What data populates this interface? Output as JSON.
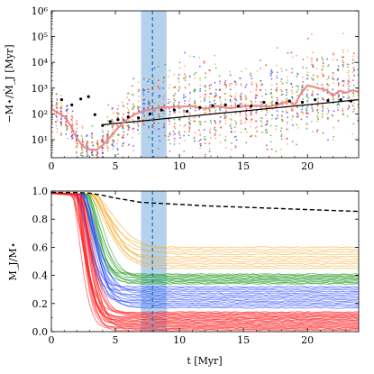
{
  "chart_data": [
    {
      "type": "scatter",
      "panel": "top",
      "ylabel": "−M⋆/Ṁ_J [Myr]",
      "xlabel": "",
      "xlim": [
        0,
        24
      ],
      "ylim_log10": [
        0.3,
        6
      ],
      "yscale": "log",
      "x_ticks": [
        0,
        5,
        10,
        15,
        20
      ],
      "x_tick_labels": [
        "0",
        "5",
        "10",
        "15",
        "20"
      ],
      "y_ticks_log10": [
        1,
        2,
        3,
        4,
        5,
        6
      ],
      "y_tick_labels": [
        "10¹",
        "10²",
        "10³",
        "10⁴",
        "10⁵",
        "10⁶"
      ],
      "shaded_band": {
        "x_min": 7,
        "x_max": 9,
        "color": "#5b9bd5"
      },
      "vline": {
        "x": 7.9,
        "color": "#1f77b4",
        "style": "dashed"
      },
      "colors": {
        "orange": "#f5a623",
        "green": "#2ca02c",
        "blue": "#1f3fff",
        "red": "#ff1a1a",
        "salmon": "#f08080"
      },
      "median_curve_log10": {
        "name": "",
        "color": "#f08080",
        "x": [
          0,
          0.5,
          1,
          1.5,
          2,
          2.5,
          3,
          3.5,
          4,
          4.5,
          5,
          5.5,
          6,
          6.5,
          7,
          7.5,
          8,
          8.5,
          9,
          10,
          11,
          12,
          13,
          14,
          15,
          16,
          17,
          18,
          18.5,
          19,
          19.5,
          20,
          20.5,
          21,
          21.5,
          22,
          22.5,
          23,
          23.5,
          24
        ],
        "y": [
          2.2,
          2.05,
          1.9,
          1.55,
          1.05,
          0.72,
          0.62,
          0.6,
          0.78,
          1.05,
          1.35,
          1.6,
          1.82,
          1.98,
          2.08,
          2.15,
          2.2,
          2.24,
          2.26,
          2.28,
          2.3,
          2.2,
          2.3,
          2.22,
          2.3,
          2.32,
          2.28,
          2.4,
          2.5,
          2.35,
          2.8,
          3.1,
          3.05,
          2.98,
          2.92,
          2.7,
          2.9,
          2.82,
          2.92,
          2.85
        ]
      },
      "fit_line_log10": {
        "color": "#000000",
        "x_start": 4,
        "x_end": 24,
        "y_start": 1.58,
        "y_end": 2.55
      },
      "black_points_log10": {
        "x": [
          0.8,
          1.6,
          2.3,
          2.9,
          3.4,
          4.0,
          4.6,
          5.2,
          6.0,
          6.8,
          7.7,
          8.6,
          9.6,
          10.6,
          11.6,
          12.6,
          13.6,
          14.6,
          15.6,
          16.6,
          17.6,
          18.6,
          19.6,
          20.6,
          21.6,
          22.6,
          23.4
        ],
        "y": [
          2.55,
          2.35,
          2.58,
          2.67,
          1.97,
          1.55,
          1.7,
          1.78,
          1.88,
          1.85,
          2.0,
          2.15,
          2.15,
          2.1,
          2.25,
          2.32,
          2.35,
          2.3,
          2.3,
          2.45,
          2.42,
          2.5,
          2.45,
          2.55,
          2.52,
          2.55,
          2.5
        ]
      }
    },
    {
      "type": "line",
      "panel": "bottom",
      "ylabel": "M_J/M⋆",
      "xlabel": "t [Myr]",
      "xlim": [
        0,
        24
      ],
      "ylim": [
        0,
        1
      ],
      "x_ticks": [
        0,
        5,
        10,
        15,
        20
      ],
      "x_tick_labels": [
        "0",
        "5",
        "10",
        "15",
        "20"
      ],
      "y_ticks": [
        0,
        0.2,
        0.4,
        0.6,
        0.8,
        1.0
      ],
      "y_tick_labels": [
        "0.0",
        "0.2",
        "0.4",
        "0.6",
        "0.8",
        "1.0"
      ],
      "shaded_band": {
        "x_min": 7,
        "x_max": 9,
        "color": "#5b9bd5"
      },
      "vline": {
        "x": 7.9,
        "color": "#1f77b4",
        "style": "dashed"
      },
      "reference_curve": {
        "name": "",
        "color": "#000000",
        "style": "dashed",
        "x": [
          0,
          2,
          3,
          4,
          5,
          6,
          7,
          8,
          10,
          12,
          15,
          18,
          21,
          24
        ],
        "y": [
          0.99,
          0.99,
          0.985,
          0.97,
          0.95,
          0.935,
          0.92,
          0.915,
          0.905,
          0.895,
          0.885,
          0.875,
          0.865,
          0.855
        ]
      },
      "series_groups": [
        {
          "color": "#f5a623",
          "count": 10,
          "start_drop": 3.2,
          "tau": 2.0,
          "final_min": 0.45,
          "final_max": 0.6
        },
        {
          "color": "#2ca02c",
          "count": 12,
          "start_drop": 2.6,
          "tau": 1.4,
          "final_min": 0.34,
          "final_max": 0.41
        },
        {
          "color": "#1f3fff",
          "count": 14,
          "start_drop": 2.3,
          "tau": 1.3,
          "final_min": 0.17,
          "final_max": 0.32
        },
        {
          "color": "#ff1a1a",
          "count": 22,
          "start_drop": 2.0,
          "tau": 1.1,
          "final_min": 0.01,
          "final_max": 0.14
        }
      ]
    }
  ]
}
